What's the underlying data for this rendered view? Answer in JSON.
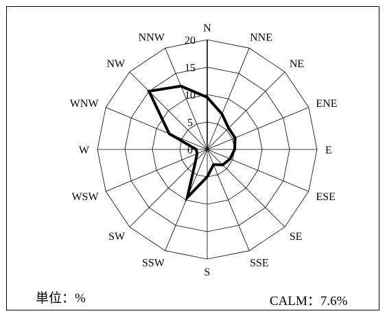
{
  "chart_data": {
    "type": "radar",
    "title": "",
    "directions": [
      "N",
      "NNE",
      "NE",
      "ENE",
      "E",
      "ESE",
      "SE",
      "SSE",
      "S",
      "SSW",
      "SW",
      "WSW",
      "W",
      "WNW",
      "NW",
      "NNW"
    ],
    "values": [
      9.5,
      7.0,
      5.5,
      5.5,
      5.0,
      4.5,
      4.0,
      3.0,
      5.0,
      9.5,
      3.0,
      2.0,
      2.0,
      7.5,
      15.0,
      12.5
    ],
    "radial_ticks": [
      "0",
      "5",
      "10",
      "15",
      "20"
    ],
    "rmax": 20,
    "grid": true,
    "line_color": "#000000"
  },
  "unit_label": "単位：%",
  "calm_label": "CALM：7.6%"
}
